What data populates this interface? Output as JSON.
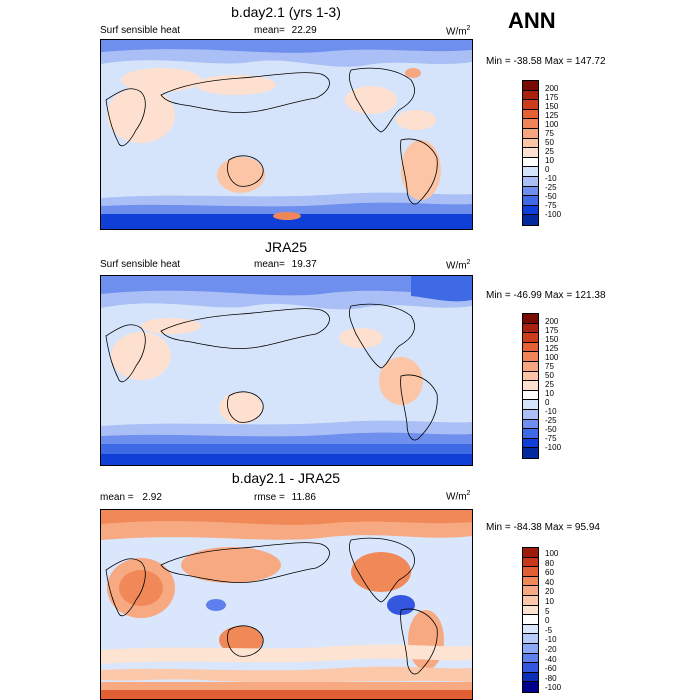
{
  "season": "ANN",
  "units_base": "W/m",
  "units_exp": "2",
  "colors": {
    "abs": [
      "#002a9e",
      "#0f3fd6",
      "#3f6ae6",
      "#6f8fee",
      "#a9bff5",
      "#d6e4fb",
      "#ffffff",
      "#fde0cf",
      "#fbc5a6",
      "#f6a680",
      "#f08658",
      "#e56234",
      "#cc3d1c",
      "#a8220f",
      "#7a0a04"
    ],
    "diff": [
      "#00008c",
      "#0b2fb8",
      "#3557e0",
      "#5e80ef",
      "#8aa8f4",
      "#b6cbf8",
      "#d9e6fc",
      "#ffffff",
      "#fde3d2",
      "#fbc8aa",
      "#f7a982",
      "#f08858",
      "#e25f33",
      "#c7391a",
      "#9e1a0a",
      "#6e0404"
    ]
  },
  "panels": [
    {
      "title": "b.day2.1 (yrs 1-3)",
      "variable": "Surf sensible heat",
      "mean_label": "mean=",
      "mean_value": "22.29",
      "minmax": "Min = -38.58 Max = 147.72",
      "cbar_labels": [
        "200",
        "175",
        "150",
        "125",
        "100",
        "75",
        "50",
        "25",
        "10",
        "0",
        "-10",
        "-25",
        "-50",
        "-75",
        "-100"
      ]
    },
    {
      "title": "JRA25",
      "variable": "Surf sensible heat",
      "mean_label": "mean=",
      "mean_value": "19.37",
      "minmax": "Min = -46.99 Max = 121.38",
      "cbar_labels": [
        "200",
        "175",
        "150",
        "125",
        "100",
        "75",
        "50",
        "25",
        "10",
        "0",
        "-10",
        "-25",
        "-50",
        "-75",
        "-100"
      ]
    },
    {
      "title": "b.day2.1 - JRA25",
      "mean_label": "mean =",
      "mean_value": "2.92",
      "rmse_label": "rmse =",
      "rmse_value": "11.86",
      "minmax": "Min = -84.38 Max =  95.94",
      "cbar_labels": [
        "100",
        "80",
        "60",
        "40",
        "20",
        "10",
        "5",
        "0",
        "-5",
        "-10",
        "-20",
        "-40",
        "-60",
        "-80",
        "-100"
      ]
    }
  ]
}
